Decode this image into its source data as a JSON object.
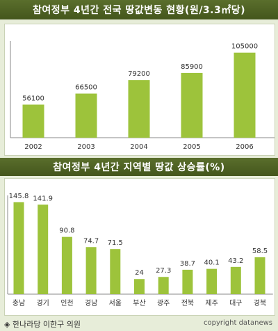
{
  "chart_data": [
    {
      "type": "bar",
      "title": "참여정부 4년간 전국 땅값변동 현황(원/3.3㎡당)",
      "categories": [
        "2002",
        "2003",
        "2004",
        "2005",
        "2006"
      ],
      "values": [
        56100,
        66500,
        79200,
        85900,
        105000
      ],
      "value_labels": [
        "56100",
        "66500",
        "79200",
        "85900",
        "105000"
      ],
      "ylim": [
        25000,
        112000
      ],
      "grid": false,
      "bar_color": "#9dc33b"
    },
    {
      "type": "bar",
      "title": "참여정부 4년간 지역별 땅값 상승률(%)",
      "categories": [
        "충남",
        "경기",
        "인천",
        "경남",
        "서울",
        "부산",
        "광주",
        "전북",
        "제주",
        "대구",
        "경북"
      ],
      "values": [
        145.8,
        141.9,
        90.8,
        74.7,
        71.5,
        24,
        27.3,
        38.7,
        40.1,
        43.2,
        58.5
      ],
      "value_labels": [
        "145.8",
        "141.9",
        "90.8",
        "74.7",
        "71.5",
        "24",
        "27.3",
        "38.7",
        "40.1",
        "43.2",
        "58.5"
      ],
      "ylim": [
        0,
        150
      ],
      "grid": false,
      "bar_color": "#9dc33b"
    }
  ],
  "footer": {
    "source": "◈ 한나라당 이한구 의원",
    "copyright": "copyright datanews"
  },
  "colors": {
    "header_bg": "#4e6224",
    "panel_bg": "#ffffff",
    "page_bg": "#e7edd9",
    "bar": "#9dc33b"
  }
}
